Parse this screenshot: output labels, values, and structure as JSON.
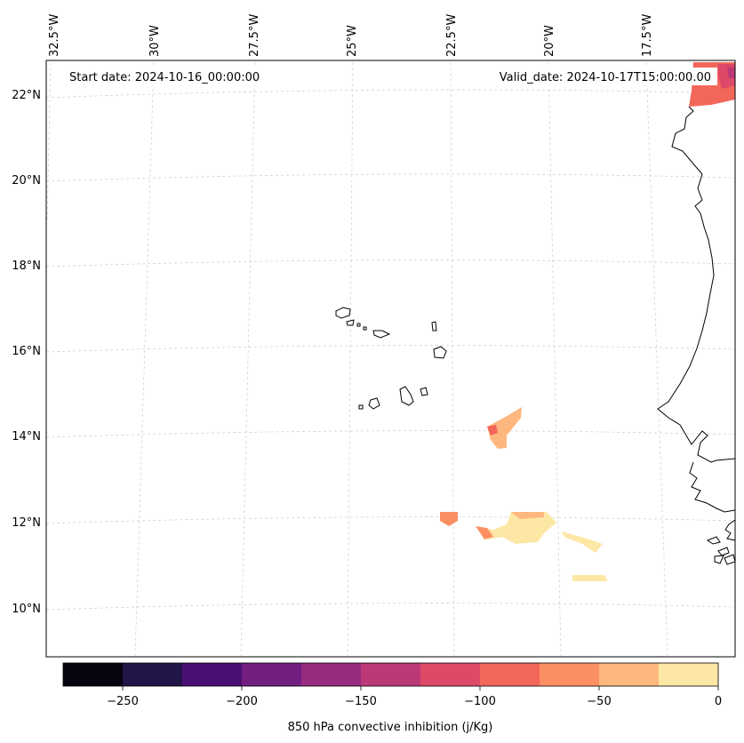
{
  "map": {
    "title_left": "Start date: 2024-10-16_00:00:00",
    "title_right": "Valid_date: 2024-10-17T15:00:00.00",
    "lon_labels": [
      "32.5°W",
      "30°W",
      "27.5°W",
      "25°W",
      "22.5°W",
      "20°W",
      "17.5°W"
    ],
    "lat_labels": [
      "22°N",
      "20°N",
      "18°N",
      "16°N",
      "14°N",
      "12°N",
      "10°N"
    ],
    "features": [
      "Cape Verde islands",
      "West African coastline"
    ]
  },
  "colorbar": {
    "label": "850 hPa convective inhibition (j/Kg)",
    "ticks": [
      "−250",
      "−200",
      "−150",
      "−100",
      "−50",
      "0"
    ],
    "colors": [
      "#05040f",
      "#211446",
      "#4b0f73",
      "#721f81",
      "#962b80",
      "#bc3978",
      "#de4968",
      "#f3675b",
      "#fb8f63",
      "#feb77e",
      "#fde7a5"
    ],
    "range": [
      -275,
      0
    ]
  }
}
